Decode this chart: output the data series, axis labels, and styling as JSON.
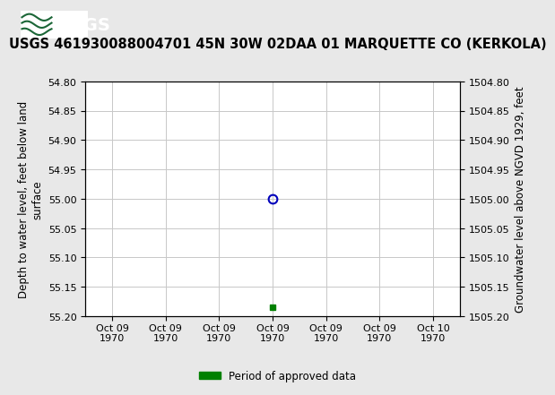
{
  "title": "USGS 461930088004701 45N 30W 02DAA 01 MARQUETTE CO (KERKOLA)",
  "ylabel_left": "Depth to water level, feet below land\nsurface",
  "ylabel_right": "Groundwater level above NGVD 1929, feet",
  "ylim_left": [
    54.8,
    55.2
  ],
  "ylim_right": [
    1504.8,
    1505.2
  ],
  "yticks_left": [
    54.8,
    54.85,
    54.9,
    54.95,
    55.0,
    55.05,
    55.1,
    55.15,
    55.2
  ],
  "yticks_right": [
    1504.8,
    1504.85,
    1504.9,
    1504.95,
    1505.0,
    1505.05,
    1505.1,
    1505.15,
    1505.2
  ],
  "xlim": [
    -0.5,
    6.5
  ],
  "xtick_labels": [
    "Oct 09\n1970",
    "Oct 09\n1970",
    "Oct 09\n1970",
    "Oct 09\n1970",
    "Oct 09\n1970",
    "Oct 09\n1970",
    "Oct 10\n1970"
  ],
  "xtick_positions": [
    0,
    1,
    2,
    3,
    4,
    5,
    6
  ],
  "data_point_x": 3,
  "data_point_y": 55.0,
  "green_marker_x": 3,
  "green_marker_y": 55.185,
  "usgs_header_color": "#1b6637",
  "plot_bg_color": "#ffffff",
  "grid_color": "#c8c8c8",
  "circle_color": "#0000bb",
  "green_color": "#008000",
  "title_fontsize": 10.5,
  "axis_label_fontsize": 8.5,
  "tick_fontsize": 8,
  "legend_label": "Period of approved data",
  "background_color": "#e8e8e8"
}
